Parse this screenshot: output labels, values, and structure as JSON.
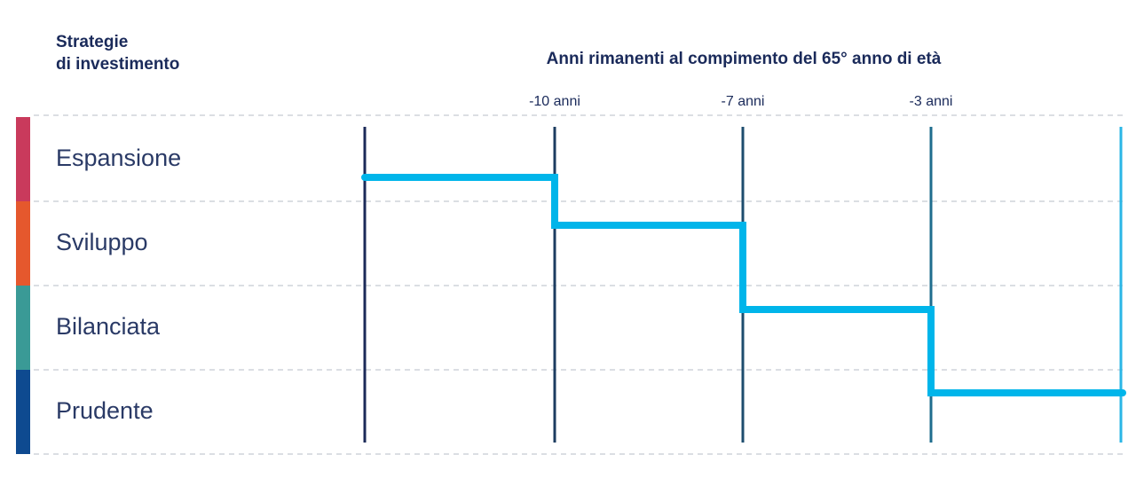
{
  "header": {
    "title": [
      "Strategie",
      "di investimento"
    ]
  },
  "axis": {
    "title": "Anni rimanenti al compimento del 65° anno di età",
    "ticks": [
      "-10 anni",
      "-7 anni",
      "-3 anni"
    ]
  },
  "rows": [
    {
      "label": "Espansione"
    },
    {
      "label": "Sviluppo"
    },
    {
      "label": "Bilanciata"
    },
    {
      "label": "Prudente"
    }
  ]
}
